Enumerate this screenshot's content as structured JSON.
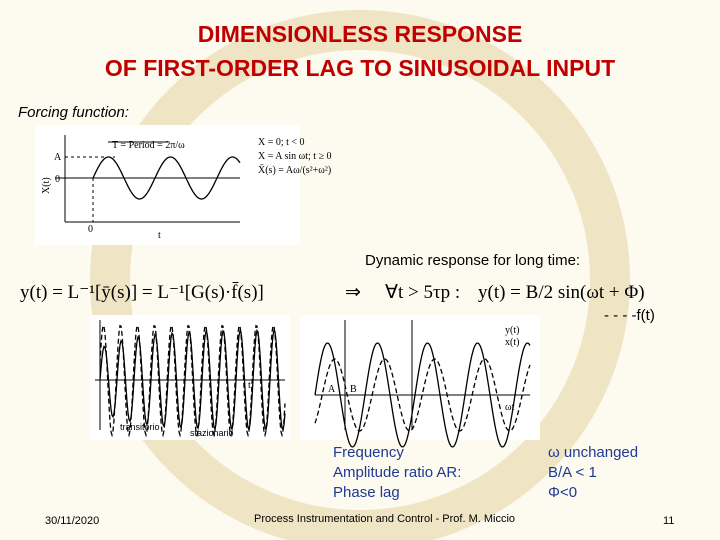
{
  "title": {
    "line1": "DIMENSIONLESS RESPONSE",
    "line2": "OF FIRST-ORDER LAG TO SINUSOIDAL INPUT"
  },
  "forcing_label": "Forcing function:",
  "forcing_figure": {
    "period": "T = Period = 2π/ω",
    "amplitude": "A",
    "zero": "0",
    "y_axis": "X(t)",
    "x_axis": "t",
    "x_zero": "0",
    "def1": "X = 0; t < 0",
    "def2": "X = A sin ωt; t ≥ 0",
    "def3": "X̄(s) = Aω/(s²+ω²)"
  },
  "equation": "y(t) = L⁻¹[ȳ(s)] = L⁻¹[G(s)·f̄(s)]",
  "implies": "⇒",
  "condition": "∀t > 5τp :",
  "response_label": "Dynamic response for long time:",
  "response_equation": "y(t) = B/2 sin(ωt + Φ)",
  "legend": "- - - -f(t)",
  "left_figure": {
    "t": "t",
    "transient": "transitorio",
    "steady": "stazionario"
  },
  "right_figure": {
    "A": "A",
    "B": "B",
    "omega_t": "ωt",
    "y": "y(t)",
    "x": "x(t)"
  },
  "properties": [
    {
      "name": "Frequency",
      "value": "ω unchanged"
    },
    {
      "name": "Amplitude ratio AR:",
      "value": "B/A < 1"
    },
    {
      "name": "Phase lag",
      "value": "Φ<0"
    }
  ],
  "footer": {
    "date": "30/11/2020",
    "course": "Process Instrumentation and Control - Prof. M. Miccio",
    "page": "11"
  }
}
